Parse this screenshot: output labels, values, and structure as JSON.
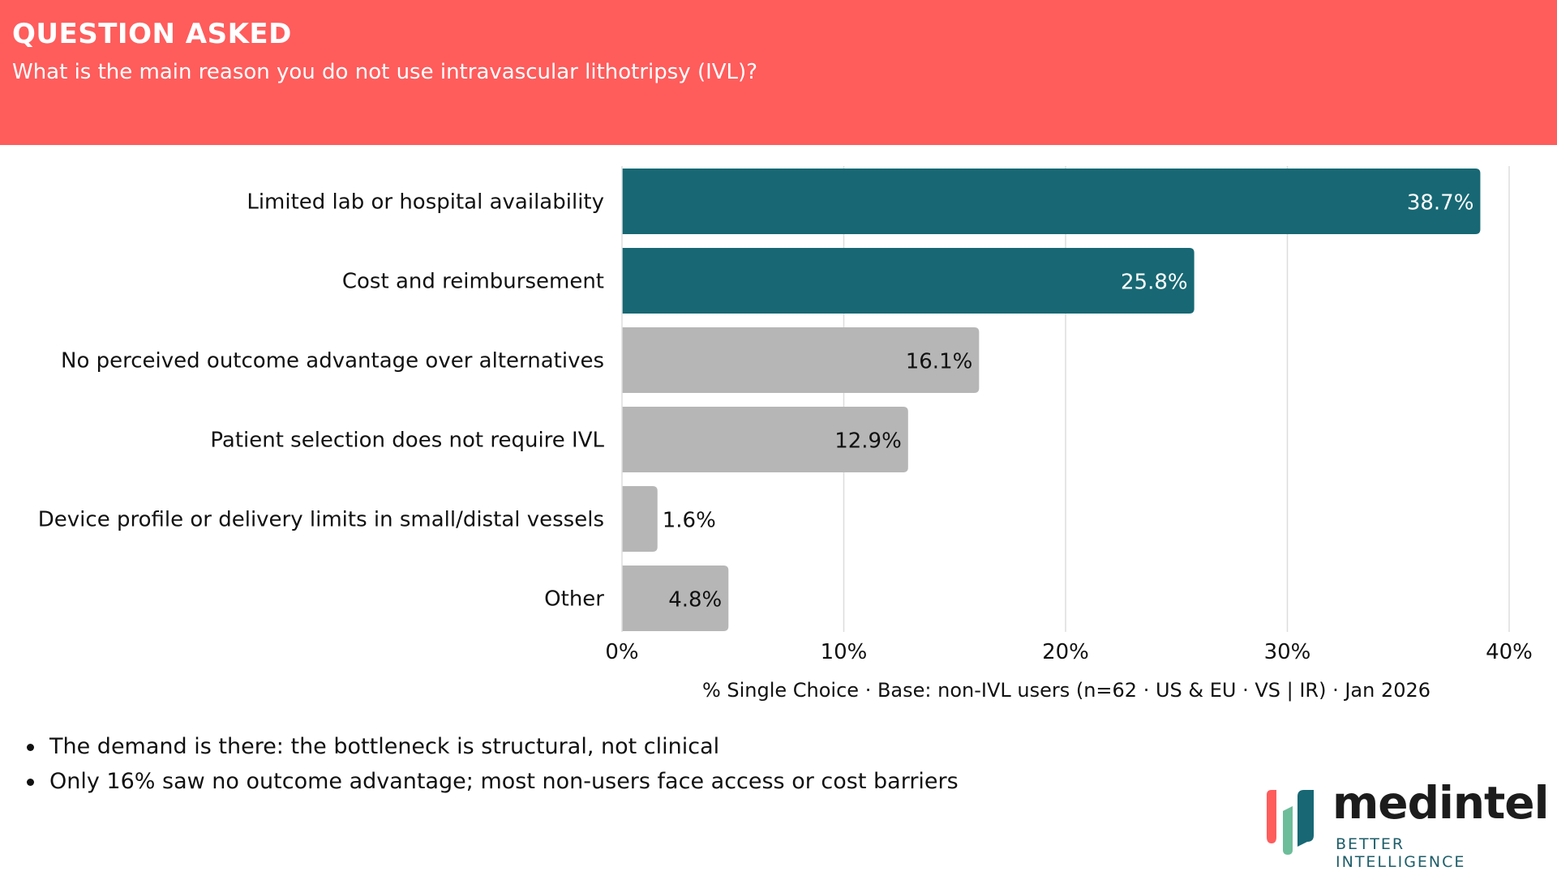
{
  "header": {
    "title": "QUESTION ASKED",
    "question": "What is the main reason you do not use intravascular lithotripsy (IVL)?",
    "background_color": "#ff5c5c"
  },
  "chart_data": {
    "type": "bar",
    "orientation": "horizontal",
    "categories": [
      "Limited lab or hospital availability",
      "Cost and reimbursement",
      "No perceived outcome advantage over alternatives",
      "Patient selection does not require IVL",
      "Device profile or delivery limits in small/distal vessels",
      "Other"
    ],
    "values": [
      38.7,
      25.8,
      16.1,
      12.9,
      1.6,
      4.8
    ],
    "value_labels": [
      "38.7%",
      "25.8%",
      "16.1%",
      "12.9%",
      "1.6%",
      "4.8%"
    ],
    "bar_colors": [
      "#176874",
      "#176874",
      "#b6b6b6",
      "#b6b6b6",
      "#b6b6b6",
      "#b6b6b6"
    ],
    "label_colors": [
      "#ffffff",
      "#ffffff",
      "#111111",
      "#111111",
      "#111111",
      "#111111"
    ],
    "xlim": [
      0,
      40
    ],
    "x_ticks": [
      0,
      10,
      20,
      30,
      40
    ],
    "x_tick_labels": [
      "0%",
      "10%",
      "20%",
      "30%",
      "40%"
    ],
    "grid": "vertical",
    "legend": "none"
  },
  "footnote": "% Single Choice · Base: non-IVL users (n=62 · US & EU · VS | IR) · Jan 2026",
  "bullets": [
    "The demand is there: the bottleneck is structural, not clinical",
    "Only 16% saw no outcome advantage; most non-users face access or cost barriers"
  ],
  "logo": {
    "name": "medintel",
    "tagline": "BETTER INTELLIGENCE",
    "mark_colors": [
      "#ff5c5c",
      "#6dbd9a",
      "#176874"
    ]
  }
}
